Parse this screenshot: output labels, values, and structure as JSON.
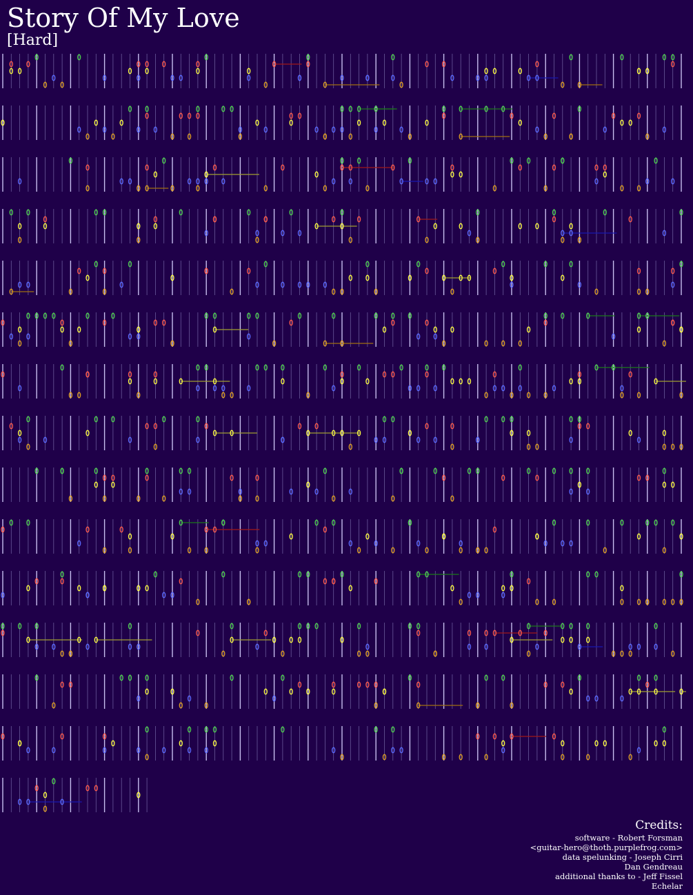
{
  "header": {
    "title": "Story Of My Love",
    "difficulty": "[Hard]"
  },
  "credits": {
    "heading": "Credits:",
    "lines": [
      "software - Robert Forsman",
      "<guitar-hero@thoth.purplefrog.com>",
      "data spelunking - Joseph Cirri",
      "Dan Gendreau",
      "additional thanks to - Jeff Fissel",
      "Echelar"
    ]
  }
}
